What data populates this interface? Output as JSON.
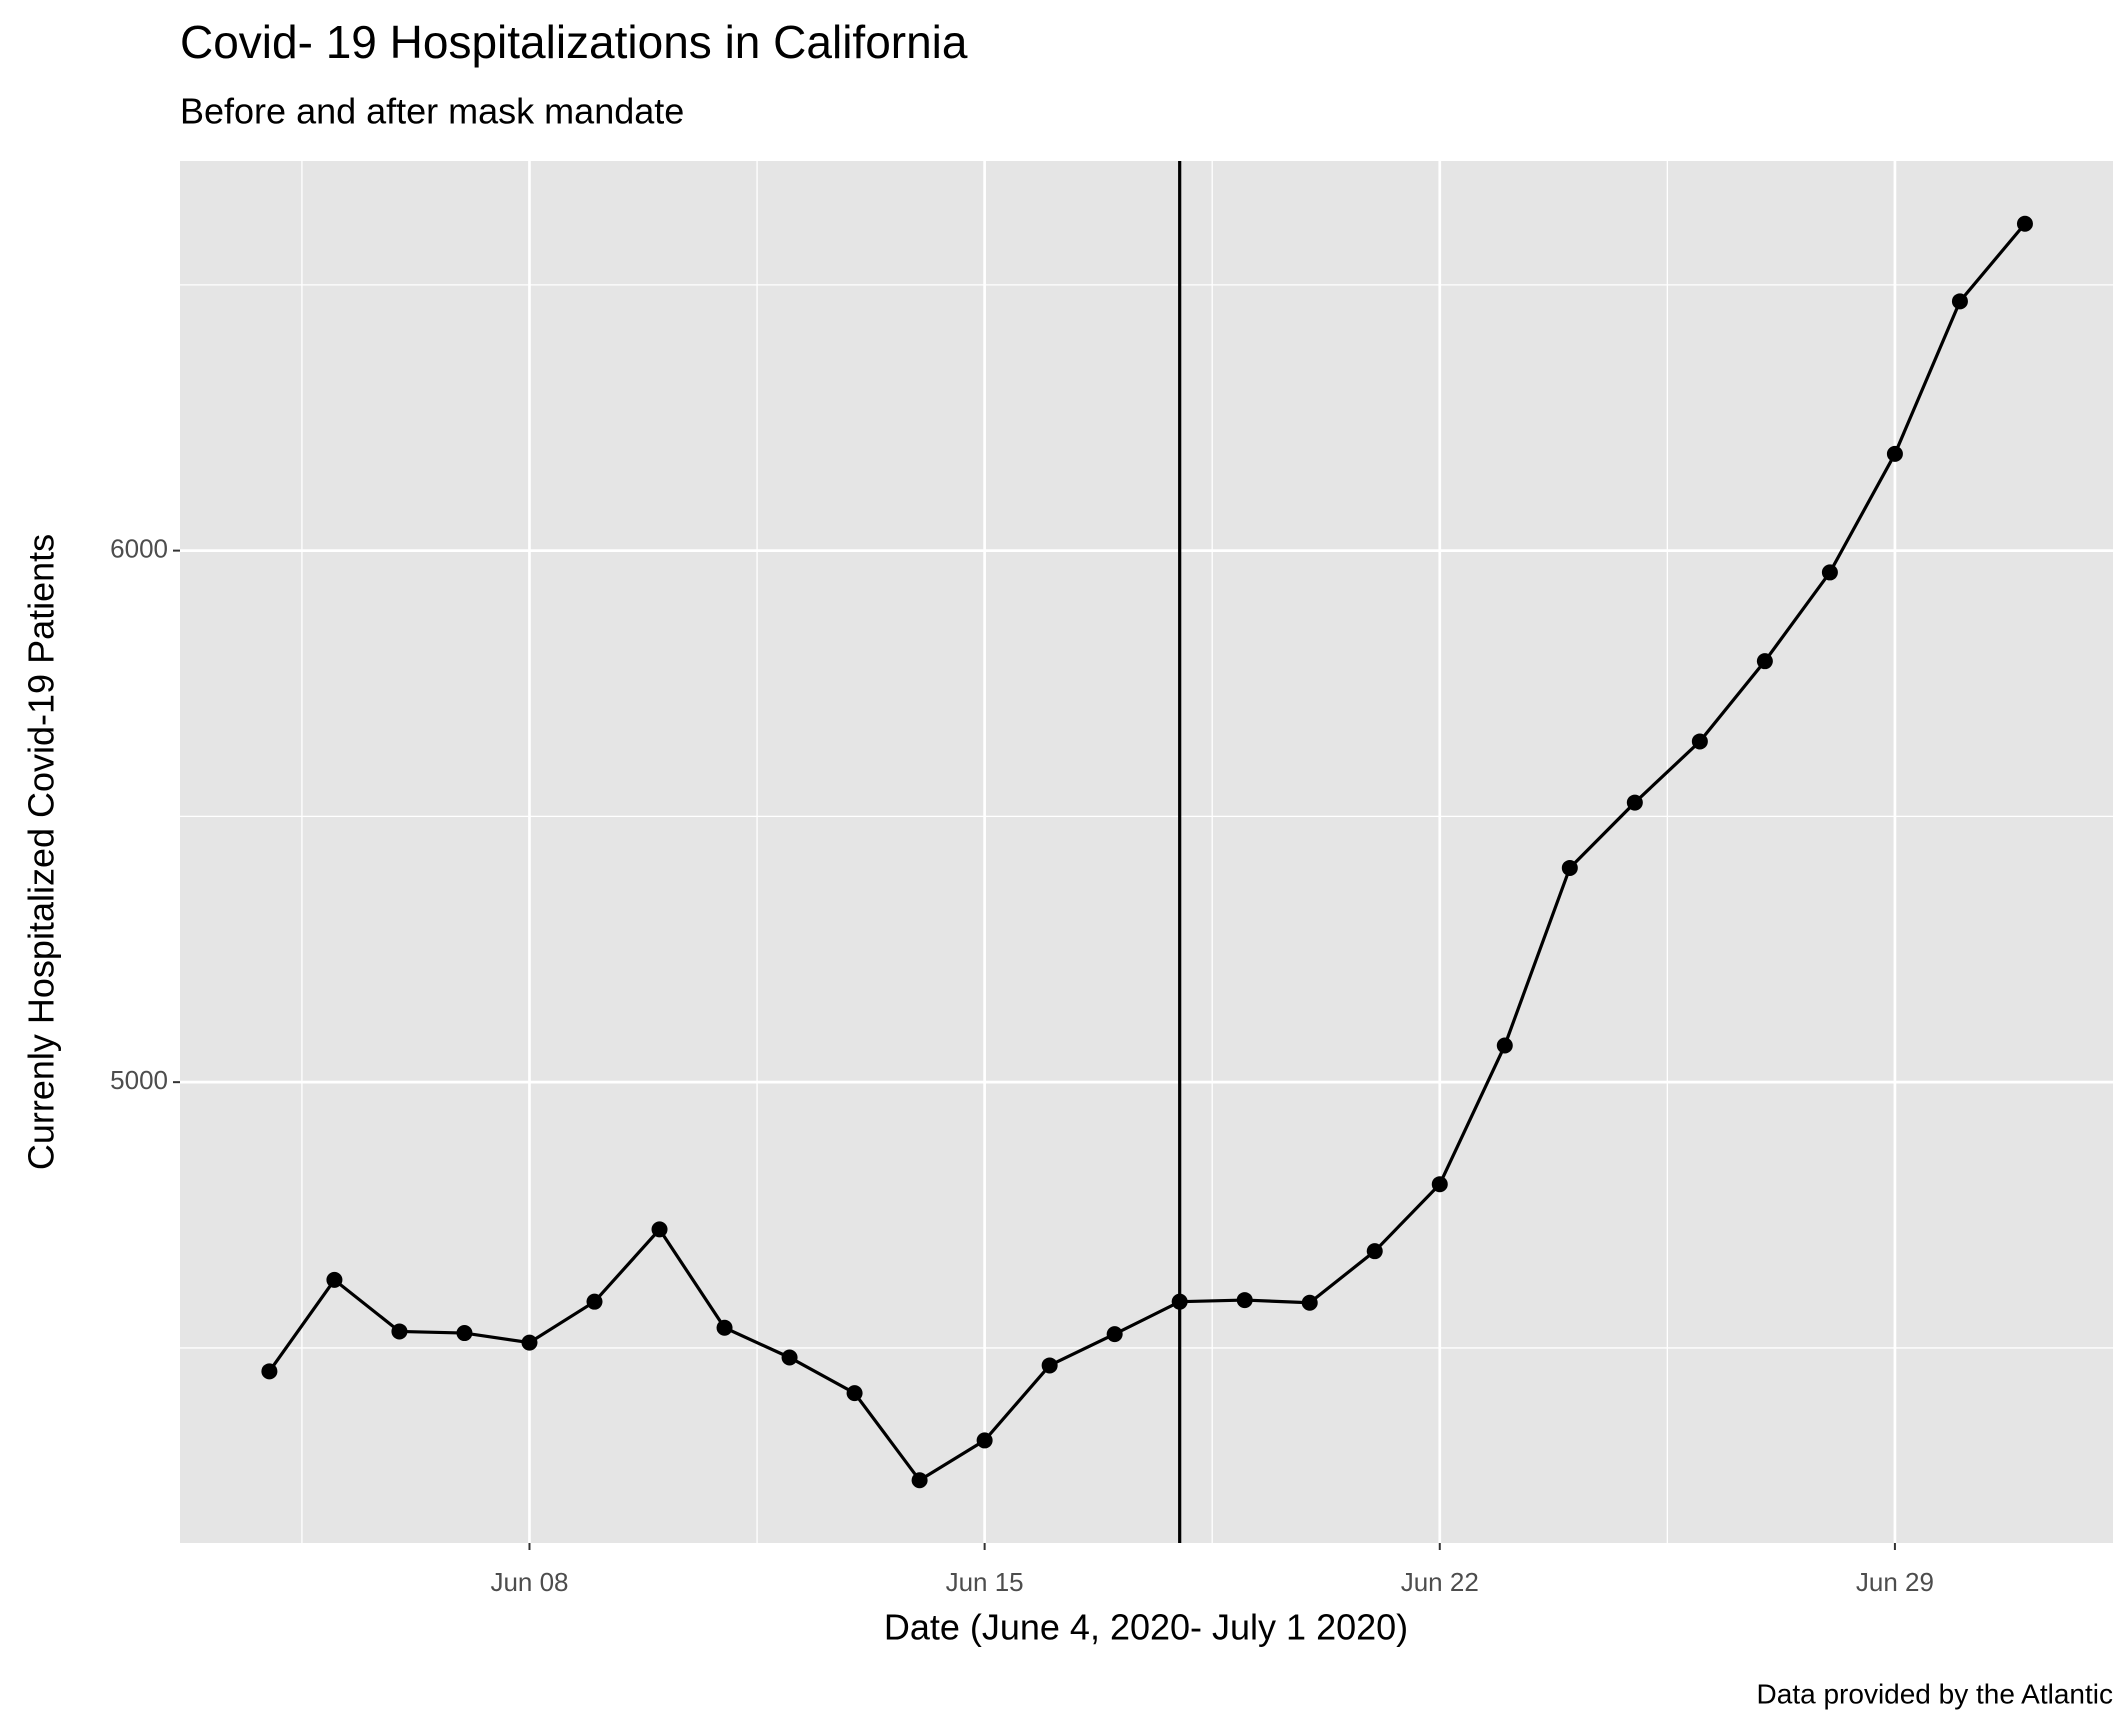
{
  "chart_data": {
    "type": "line",
    "title": "Covid- 19 Hospitalizations in California",
    "subtitle": "Before and after mask mandate",
    "x_label": "Date (June 4, 2020- July 1 2020)",
    "y_label": "Currenly Hospitalized Covid-19 Patients",
    "caption": "Data provided by the Atlantic",
    "x": [
      "2020-06-04",
      "2020-06-05",
      "2020-06-06",
      "2020-06-07",
      "2020-06-08",
      "2020-06-09",
      "2020-06-10",
      "2020-06-11",
      "2020-06-12",
      "2020-06-13",
      "2020-06-14",
      "2020-06-15",
      "2020-06-16",
      "2020-06-17",
      "2020-06-18",
      "2020-06-19",
      "2020-06-20",
      "2020-06-21",
      "2020-06-22",
      "2020-06-23",
      "2020-06-24",
      "2020-06-25",
      "2020-06-26",
      "2020-06-27",
      "2020-06-28",
      "2020-06-29",
      "2020-06-30",
      "2020-07-01"
    ],
    "values": [
      4456,
      4628,
      4531,
      4528,
      4510,
      4587,
      4723,
      4538,
      4482,
      4415,
      4251,
      4326,
      4467,
      4526,
      4587,
      4590,
      4585,
      4682,
      4808,
      5069,
      5403,
      5526,
      5641,
      5792,
      5959,
      6182,
      6469,
      6615
    ],
    "color": "#000000",
    "vline": "2020-06-18",
    "xlim": [
      "2020-06-02T15:00",
      "2020-07-02T08:30"
    ],
    "xticks": [
      {
        "value": "2020-06-08",
        "label": "Jun 08"
      },
      {
        "value": "2020-06-15",
        "label": "Jun 15"
      },
      {
        "value": "2020-06-22",
        "label": "Jun 22"
      },
      {
        "value": "2020-06-29",
        "label": "Jun 29"
      }
    ],
    "ylim": [
      4133,
      6733
    ],
    "yticks": [
      5000,
      6000
    ],
    "grid": true
  }
}
